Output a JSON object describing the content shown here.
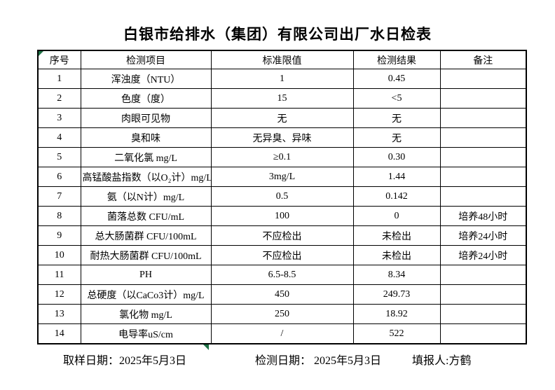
{
  "title": "白银市给排水（集团）有限公司出厂水日检表",
  "table": {
    "headers": [
      "序号",
      "检测项目",
      "标准限值",
      "检测结果",
      "备注"
    ],
    "rows": [
      {
        "no": "1",
        "item": "浑浊度（NTU）",
        "limit": "1",
        "result": "0.45",
        "remark": ""
      },
      {
        "no": "2",
        "item": "色度（度）",
        "limit": "15",
        "result": "<5",
        "remark": ""
      },
      {
        "no": "3",
        "item": "肉眼可见物",
        "limit": "无",
        "result": "无",
        "remark": ""
      },
      {
        "no": "4",
        "item": "臭和味",
        "limit": "无异臭、异味",
        "result": "无",
        "remark": ""
      },
      {
        "no": "5",
        "item": "二氧化氯 mg/L",
        "limit": "≥0.1",
        "result": "0.30",
        "remark": ""
      },
      {
        "no": "6",
        "item": "高锰酸盐指数（以O₂计）mg/L",
        "limit": "3mg/L",
        "result": "1.44",
        "remark": ""
      },
      {
        "no": "7",
        "item": "氨（以N计）mg/L",
        "limit": "0.5",
        "result": "0.142",
        "remark": ""
      },
      {
        "no": "8",
        "item": "菌落总数 CFU/mL",
        "limit": "100",
        "result": "0",
        "remark": "培养48小时"
      },
      {
        "no": "9",
        "item": "总大肠菌群 CFU/100mL",
        "limit": "不应检出",
        "result": "未检出",
        "remark": "培养24小时"
      },
      {
        "no": "10",
        "item": "耐热大肠菌群 CFU/100mL",
        "limit": "不应检出",
        "result": "未检出",
        "remark": "培养24小时"
      },
      {
        "no": "11",
        "item": "PH",
        "limit": "6.5-8.5",
        "result": "8.34",
        "remark": ""
      },
      {
        "no": "12",
        "item": "总硬度（以CaCo3计）mg/L",
        "limit": "450",
        "result": "249.73",
        "remark": ""
      },
      {
        "no": "13",
        "item": "氯化物 mg/L",
        "limit": "250",
        "result": "18.92",
        "remark": ""
      },
      {
        "no": "14",
        "item": "电导率uS/cm",
        "limit": "/",
        "result": "522",
        "remark": ""
      }
    ]
  },
  "footer": {
    "sampling_date": "取样日期：2025年5月3日",
    "testing_date": "检测日期： 2025年5月3日",
    "reporter": "填报人:方鹤"
  },
  "colors": {
    "border": "#000000",
    "marker_green": "#1e7145",
    "background": "#ffffff"
  }
}
